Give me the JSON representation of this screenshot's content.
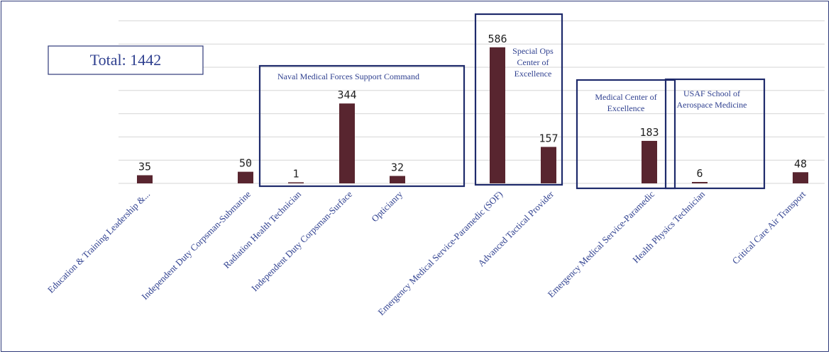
{
  "chart_data": {
    "type": "bar",
    "categories": [
      "Education & Training Leadership &...",
      "Independent Duty Corpsman-Submarine",
      "Radiation Health Technician",
      "Independent Duty Corpsman-Surface",
      "Opticianry",
      "Emergency Medical Service-Paramedic (SOF)",
      "Advanced Tactical Provider",
      "Emergency Medical Service-Paramedic",
      "Health Physics Technician",
      "Critical Care Air Transport"
    ],
    "values": [
      35,
      50,
      1,
      344,
      32,
      586,
      157,
      183,
      6,
      48
    ],
    "ylim": [
      0,
      700
    ],
    "grid": true,
    "bar_color": "#58252f",
    "annotation_color": "#1e2a6b",
    "total_label": "Total:  1442",
    "annotations": [
      {
        "lines": [
          "Naval Medical Forces Support Command"
        ]
      },
      {
        "lines": [
          "Special Ops",
          "Center of",
          "Excellence"
        ]
      },
      {
        "lines": [
          "Medical Center of",
          "Excellence"
        ]
      },
      {
        "lines": [
          "USAF School of",
          "Aerospace Medicine"
        ]
      }
    ]
  }
}
